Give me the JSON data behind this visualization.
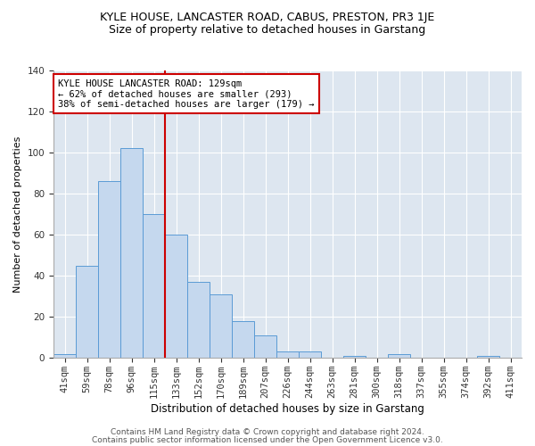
{
  "title": "KYLE HOUSE, LANCASTER ROAD, CABUS, PRESTON, PR3 1JE",
  "subtitle": "Size of property relative to detached houses in Garstang",
  "xlabel": "Distribution of detached houses by size in Garstang",
  "ylabel": "Number of detached properties",
  "categories": [
    "41sqm",
    "59sqm",
    "78sqm",
    "96sqm",
    "115sqm",
    "133sqm",
    "152sqm",
    "170sqm",
    "189sqm",
    "207sqm",
    "226sqm",
    "244sqm",
    "263sqm",
    "281sqm",
    "300sqm",
    "318sqm",
    "337sqm",
    "355sqm",
    "374sqm",
    "392sqm",
    "411sqm"
  ],
  "values": [
    2,
    45,
    86,
    102,
    70,
    60,
    37,
    31,
    18,
    11,
    3,
    3,
    0,
    1,
    0,
    2,
    0,
    0,
    0,
    1,
    0
  ],
  "bar_color": "#c5d8ee",
  "bar_edge_color": "#5b9bd5",
  "vline_x": 4.5,
  "vline_color": "#cc0000",
  "annotation_text": "KYLE HOUSE LANCASTER ROAD: 129sqm\n← 62% of detached houses are smaller (293)\n38% of semi-detached houses are larger (179) →",
  "annotation_box_color": "#ffffff",
  "annotation_box_edge_color": "#cc0000",
  "ylim": [
    0,
    140
  ],
  "yticks": [
    0,
    20,
    40,
    60,
    80,
    100,
    120,
    140
  ],
  "background_color": "#dde6f0",
  "footer_line1": "Contains HM Land Registry data © Crown copyright and database right 2024.",
  "footer_line2": "Contains public sector information licensed under the Open Government Licence v3.0.",
  "title_fontsize": 9,
  "subtitle_fontsize": 9,
  "xlabel_fontsize": 8.5,
  "ylabel_fontsize": 8,
  "tick_fontsize": 7.5,
  "annotation_fontsize": 7.5,
  "footer_fontsize": 6.5
}
